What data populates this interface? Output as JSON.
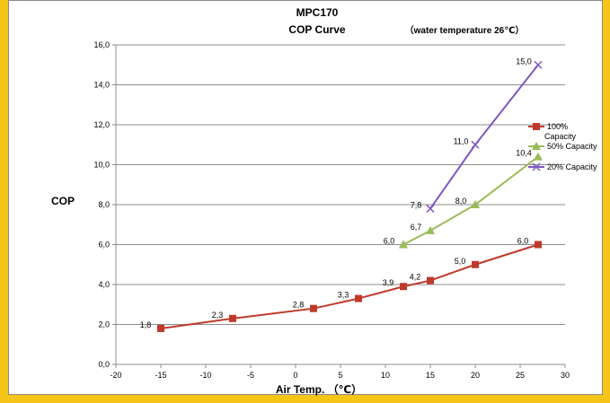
{
  "chart_data": {
    "type": "line",
    "title": "MPC170",
    "subtitle": "COP Curve",
    "note": "（water temperature 26℃）",
    "xlabel": "Air Temp. （℃）",
    "ylabel": "COP",
    "xlim": [
      -20,
      30
    ],
    "ylim": [
      0,
      16
    ],
    "xticks": [
      -20,
      -15,
      -10,
      -5,
      0,
      5,
      10,
      15,
      20,
      25,
      30
    ],
    "yticks": [
      0,
      2,
      4,
      6,
      8,
      10,
      12,
      14,
      16
    ],
    "xtick_labels": [
      "-20",
      "-15",
      "-10",
      "-5",
      "0",
      "5",
      "10",
      "15",
      "20",
      "25",
      "30"
    ],
    "ytick_labels": [
      "0,0",
      "2,0",
      "4,0",
      "6,0",
      "8,0",
      "10,0",
      "12,0",
      "14,0",
      "16,0"
    ],
    "grid": true,
    "legend": "right",
    "series": [
      {
        "name": "100% Capacity",
        "color": "#c0392b",
        "marker": "square",
        "x": [
          -15,
          -7,
          2,
          7,
          12,
          15,
          20,
          27
        ],
        "y": [
          1.8,
          2.3,
          2.8,
          3.3,
          3.9,
          4.2,
          5.0,
          6.0
        ],
        "labels": [
          "1,8",
          "2,3",
          "2,8",
          "3,3",
          "3,9",
          "4,2",
          "5,0",
          "6,0"
        ]
      },
      {
        "name": "50% Capacity",
        "color": "#9bbb59",
        "marker": "triangle",
        "x": [
          12,
          15,
          20,
          27
        ],
        "y": [
          6.0,
          6.7,
          8.0,
          10.4
        ],
        "labels": [
          "6,0",
          "6,7",
          "8,0",
          "10,4"
        ]
      },
      {
        "name": "20% Capacity",
        "color": "#7e57c2",
        "marker": "x",
        "x": [
          15,
          20,
          27
        ],
        "y": [
          7.8,
          11.0,
          15.0
        ],
        "labels": [
          "7,8",
          "11,0",
          "15,0"
        ]
      }
    ]
  }
}
